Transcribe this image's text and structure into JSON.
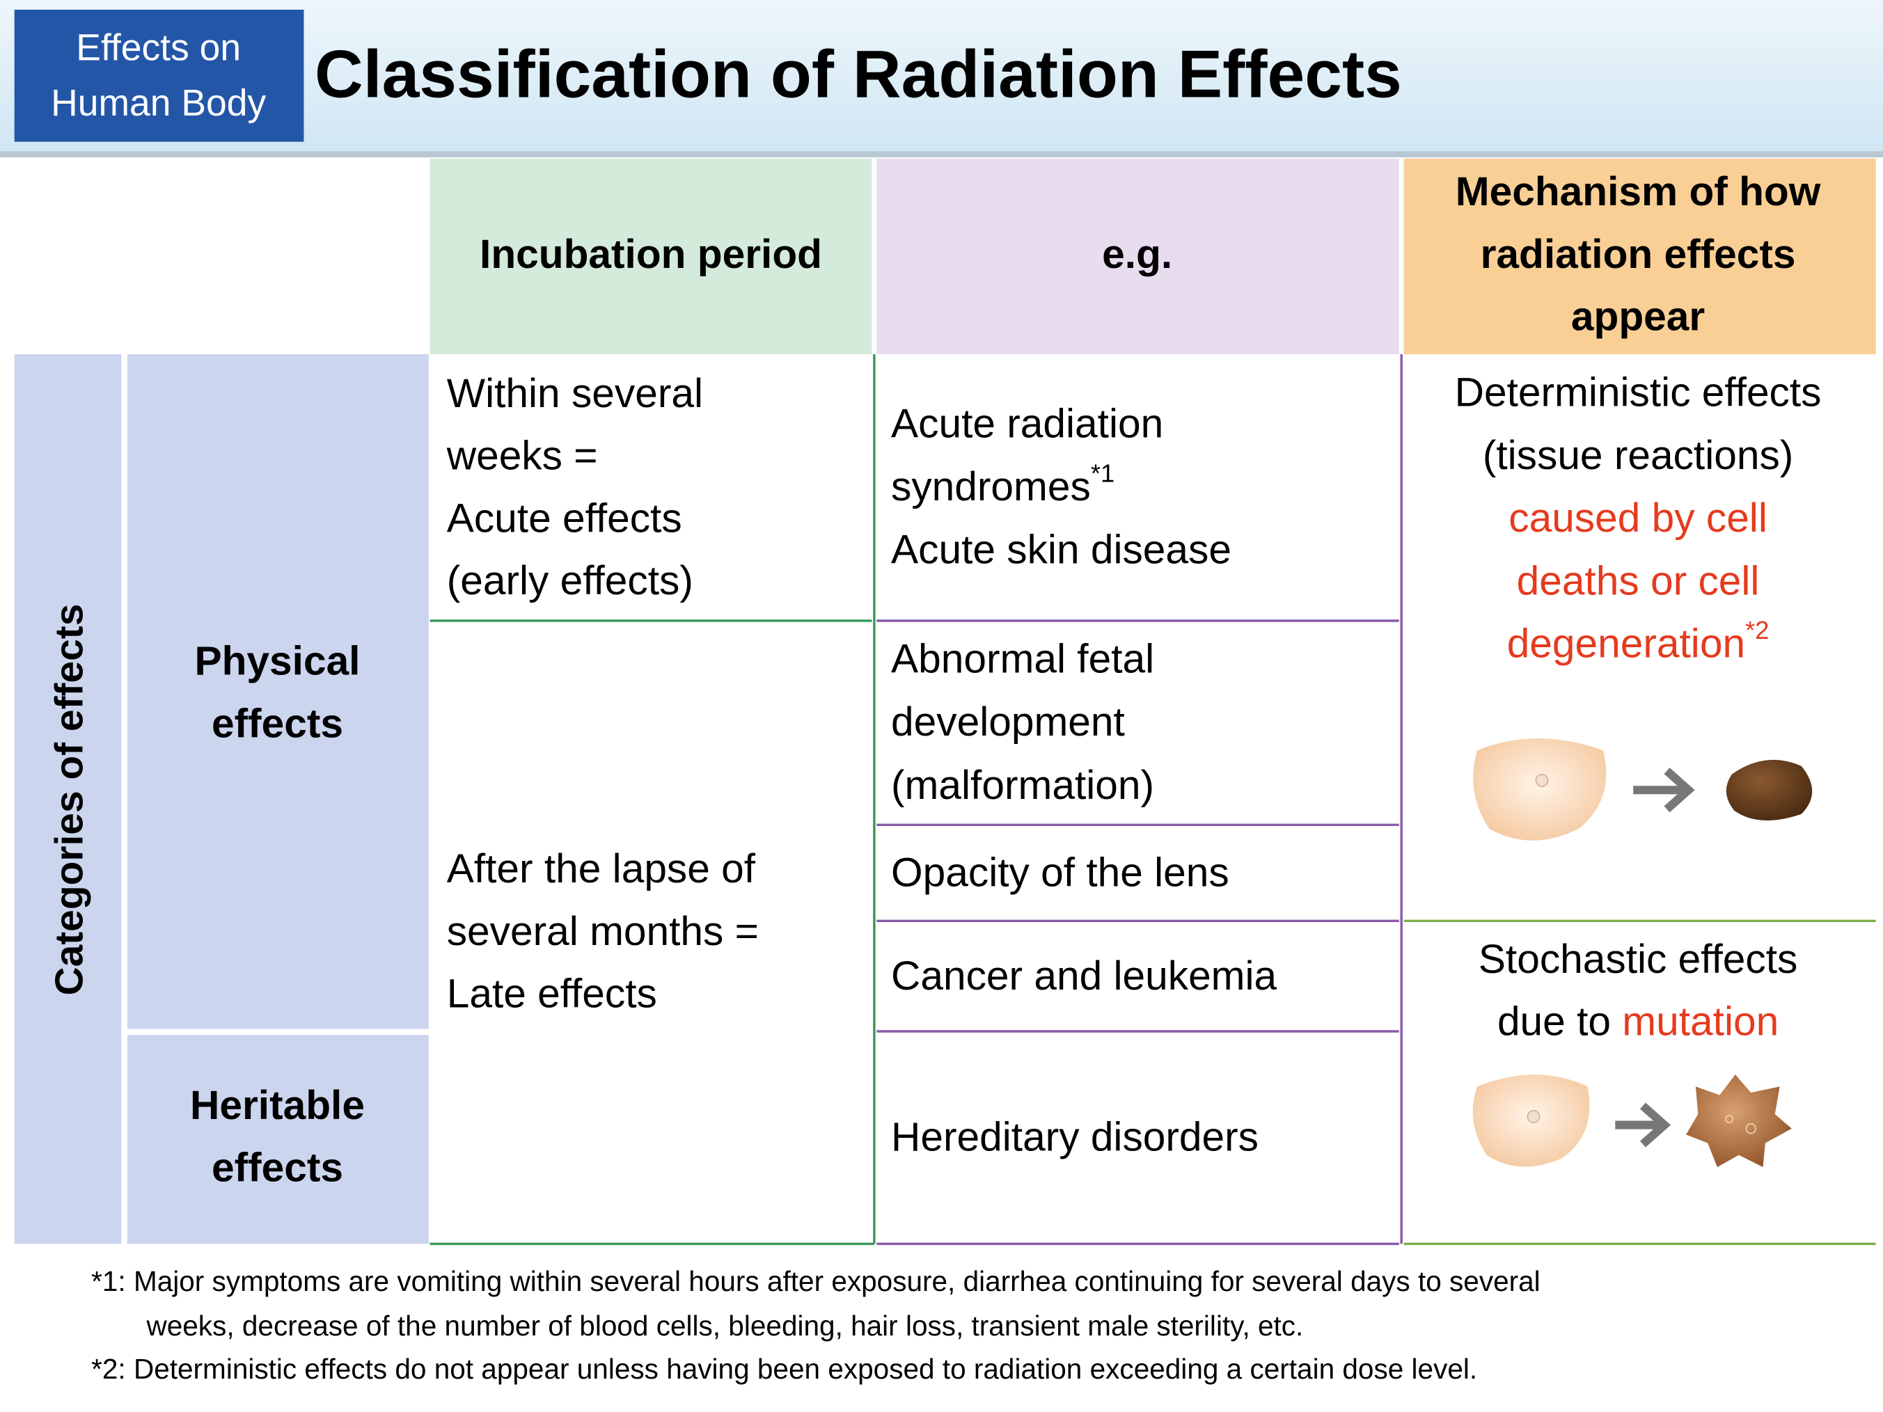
{
  "header": {
    "badge": [
      "Effects on",
      "Human Body"
    ],
    "title": "Classification of Radiation Effects"
  },
  "table": {
    "columns": [
      [
        "Incubation period"
      ],
      [
        "e.g."
      ],
      [
        "Mechanism of how",
        "radiation effects",
        "appear"
      ]
    ],
    "row_header": "Categories of effects",
    "categories": [
      [
        "Physical",
        "effects"
      ],
      [
        "Heritable",
        "effects"
      ]
    ],
    "incubation": [
      [
        "Within several",
        "weeks =",
        "Acute effects",
        " (early effects)"
      ],
      [
        "After the lapse of",
        "several months =",
        "Late effects"
      ]
    ],
    "examples": [
      [
        [
          {
            "text": "Acute radiation",
            "style": "plain"
          }
        ],
        [
          {
            "text": "syndromes",
            "style": "plain"
          },
          {
            "text": "*1",
            "style": "sup"
          }
        ],
        [
          {
            "text": "Acute skin disease",
            "style": "plain"
          }
        ]
      ],
      [
        [
          {
            "text": "Abnormal fetal",
            "style": "plain"
          }
        ],
        [
          {
            "text": "development",
            "style": "plain"
          }
        ],
        [
          {
            "text": "(malformation)",
            "style": "plain"
          }
        ]
      ],
      [
        [
          {
            "text": "Opacity of the lens",
            "style": "plain"
          }
        ]
      ],
      [
        [
          {
            "text": "Cancer and leukemia",
            "style": "plain"
          }
        ]
      ],
      [
        [
          {
            "text": "Hereditary disorders",
            "style": "plain"
          }
        ]
      ]
    ],
    "mechanisms": [
      [
        [
          {
            "text": "Deterministic effects",
            "style": "plain"
          }
        ],
        [
          {
            "text": "(tissue reactions)",
            "style": "plain"
          }
        ],
        [
          {
            "text": "caused by cell",
            "style": "red"
          }
        ],
        [
          {
            "text": "deaths or cell",
            "style": "red"
          }
        ],
        [
          {
            "text": "degeneration",
            "style": "red"
          },
          {
            "text": "*2",
            "style": "red-sup"
          }
        ]
      ],
      [
        [
          {
            "text": "Stochastic effects",
            "style": "plain"
          }
        ],
        [
          {
            "text": "due to ",
            "style": "plain"
          },
          {
            "text": "mutation",
            "style": "red"
          }
        ]
      ]
    ]
  },
  "footnotes": [
    "*1: Major symptoms are vomiting within several hours after exposure, diarrhea continuing for several days to several",
    "weeks, decrease of the number of blood cells, bleeding, hair loss, transient male sterility, etc.",
    "*2: Deterministic effects do not appear unless having been exposed to radiation exceeding a certain dose level."
  ]
}
